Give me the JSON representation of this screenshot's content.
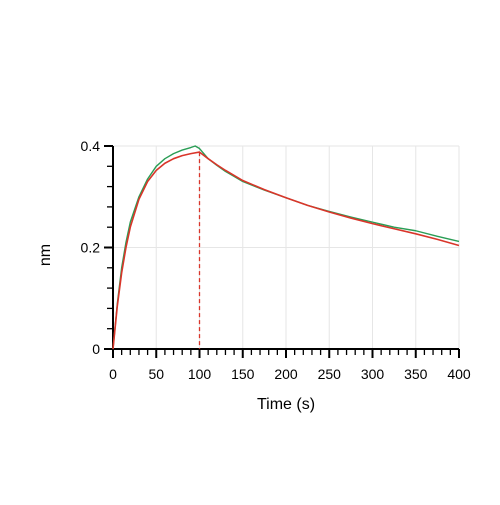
{
  "chart_data": {
    "type": "line",
    "title": "",
    "xlabel": "Time (s)",
    "ylabel": "nm",
    "xlim": [
      0,
      400
    ],
    "ylim": [
      0,
      0.4
    ],
    "x_ticks": [
      0,
      50,
      100,
      150,
      200,
      250,
      300,
      350,
      400
    ],
    "x_tick_labels": [
      "0",
      "50",
      "100",
      "150",
      "200",
      "250",
      "300",
      "350",
      "400"
    ],
    "y_ticks": [
      0,
      0.2,
      0.4
    ],
    "y_tick_labels": [
      "0",
      "0.2",
      "0.4"
    ],
    "grid": true,
    "dissociation_start": 100,
    "series": [
      {
        "role": "measured",
        "color": "#2a9d55",
        "x": [
          0,
          5,
          10,
          15,
          20,
          30,
          40,
          50,
          60,
          70,
          80,
          90,
          95,
          100,
          110,
          120,
          130,
          140,
          150,
          175,
          200,
          225,
          250,
          275,
          300,
          325,
          350,
          375,
          400
        ],
        "y": [
          0.0,
          0.09,
          0.16,
          0.21,
          0.25,
          0.3,
          0.335,
          0.36,
          0.375,
          0.385,
          0.392,
          0.397,
          0.4,
          0.395,
          0.375,
          0.362,
          0.35,
          0.34,
          0.33,
          0.313,
          0.298,
          0.283,
          0.271,
          0.26,
          0.25,
          0.24,
          0.233,
          0.222,
          0.212
        ]
      },
      {
        "role": "fit",
        "color": "#d9352a",
        "x": [
          0,
          5,
          10,
          15,
          20,
          30,
          40,
          50,
          60,
          70,
          80,
          90,
          100,
          110,
          120,
          130,
          140,
          150,
          175,
          200,
          225,
          250,
          275,
          300,
          325,
          350,
          375,
          400
        ],
        "y": [
          0.0,
          0.085,
          0.15,
          0.2,
          0.24,
          0.295,
          0.33,
          0.352,
          0.366,
          0.375,
          0.381,
          0.385,
          0.388,
          0.375,
          0.363,
          0.352,
          0.342,
          0.332,
          0.314,
          0.298,
          0.283,
          0.27,
          0.258,
          0.247,
          0.237,
          0.227,
          0.216,
          0.204
        ]
      }
    ]
  }
}
